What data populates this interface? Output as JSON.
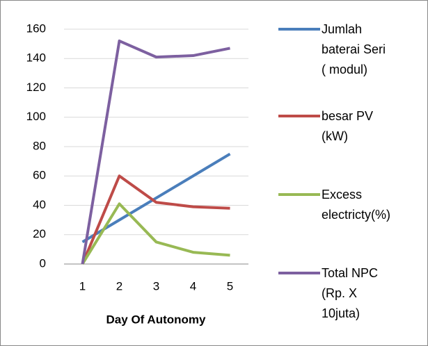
{
  "chart_data": {
    "type": "line",
    "categories": [
      "1",
      "2",
      "3",
      "4",
      "5"
    ],
    "x_label": "Day Of Autonomy",
    "series": [
      {
        "name": "Jumlah\nbaterai Seri\n( modul)",
        "color": "#4a7ebb",
        "values": [
          15,
          30,
          45,
          60,
          75
        ]
      },
      {
        "name": "besar PV\n(kW)",
        "color": "#be4b48",
        "values": [
          0,
          60,
          42,
          39,
          38
        ]
      },
      {
        "name": "Excess\nelectricty(%)",
        "color": "#98b954",
        "values": [
          0,
          41,
          15,
          8,
          6
        ]
      },
      {
        "name": "Total NPC\n(Rp.  X\n10juta)",
        "color": "#7d60a0",
        "values": [
          0,
          152,
          141,
          142,
          147
        ]
      }
    ],
    "ylim": [
      0,
      160
    ],
    "yticks": [
      0,
      20,
      40,
      60,
      80,
      100,
      120,
      140,
      160
    ],
    "grid": true,
    "legend": "right"
  }
}
